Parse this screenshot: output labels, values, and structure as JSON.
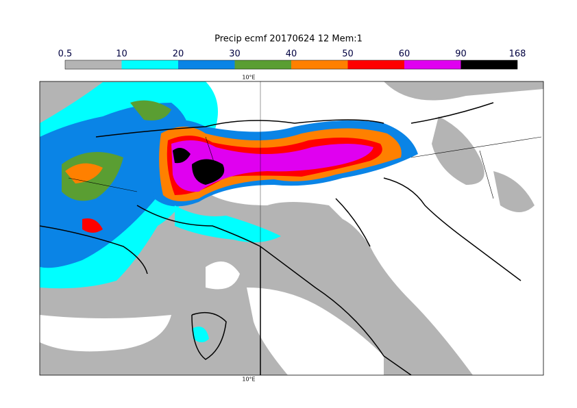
{
  "title": "Precip ecmf 20170624 12 Mem:1",
  "colorbar": {
    "levels": [
      0.5,
      10,
      20,
      30,
      40,
      50,
      60,
      90,
      168
    ],
    "colors": [
      "#b4b4b4",
      "#00ffff",
      "#0a84e6",
      "#5a9e32",
      "#ff8000",
      "#ff0000",
      "#e000f0",
      "#000000"
    ]
  },
  "lon_labels": {
    "top": "10°E",
    "bottom": "10°E"
  }
}
